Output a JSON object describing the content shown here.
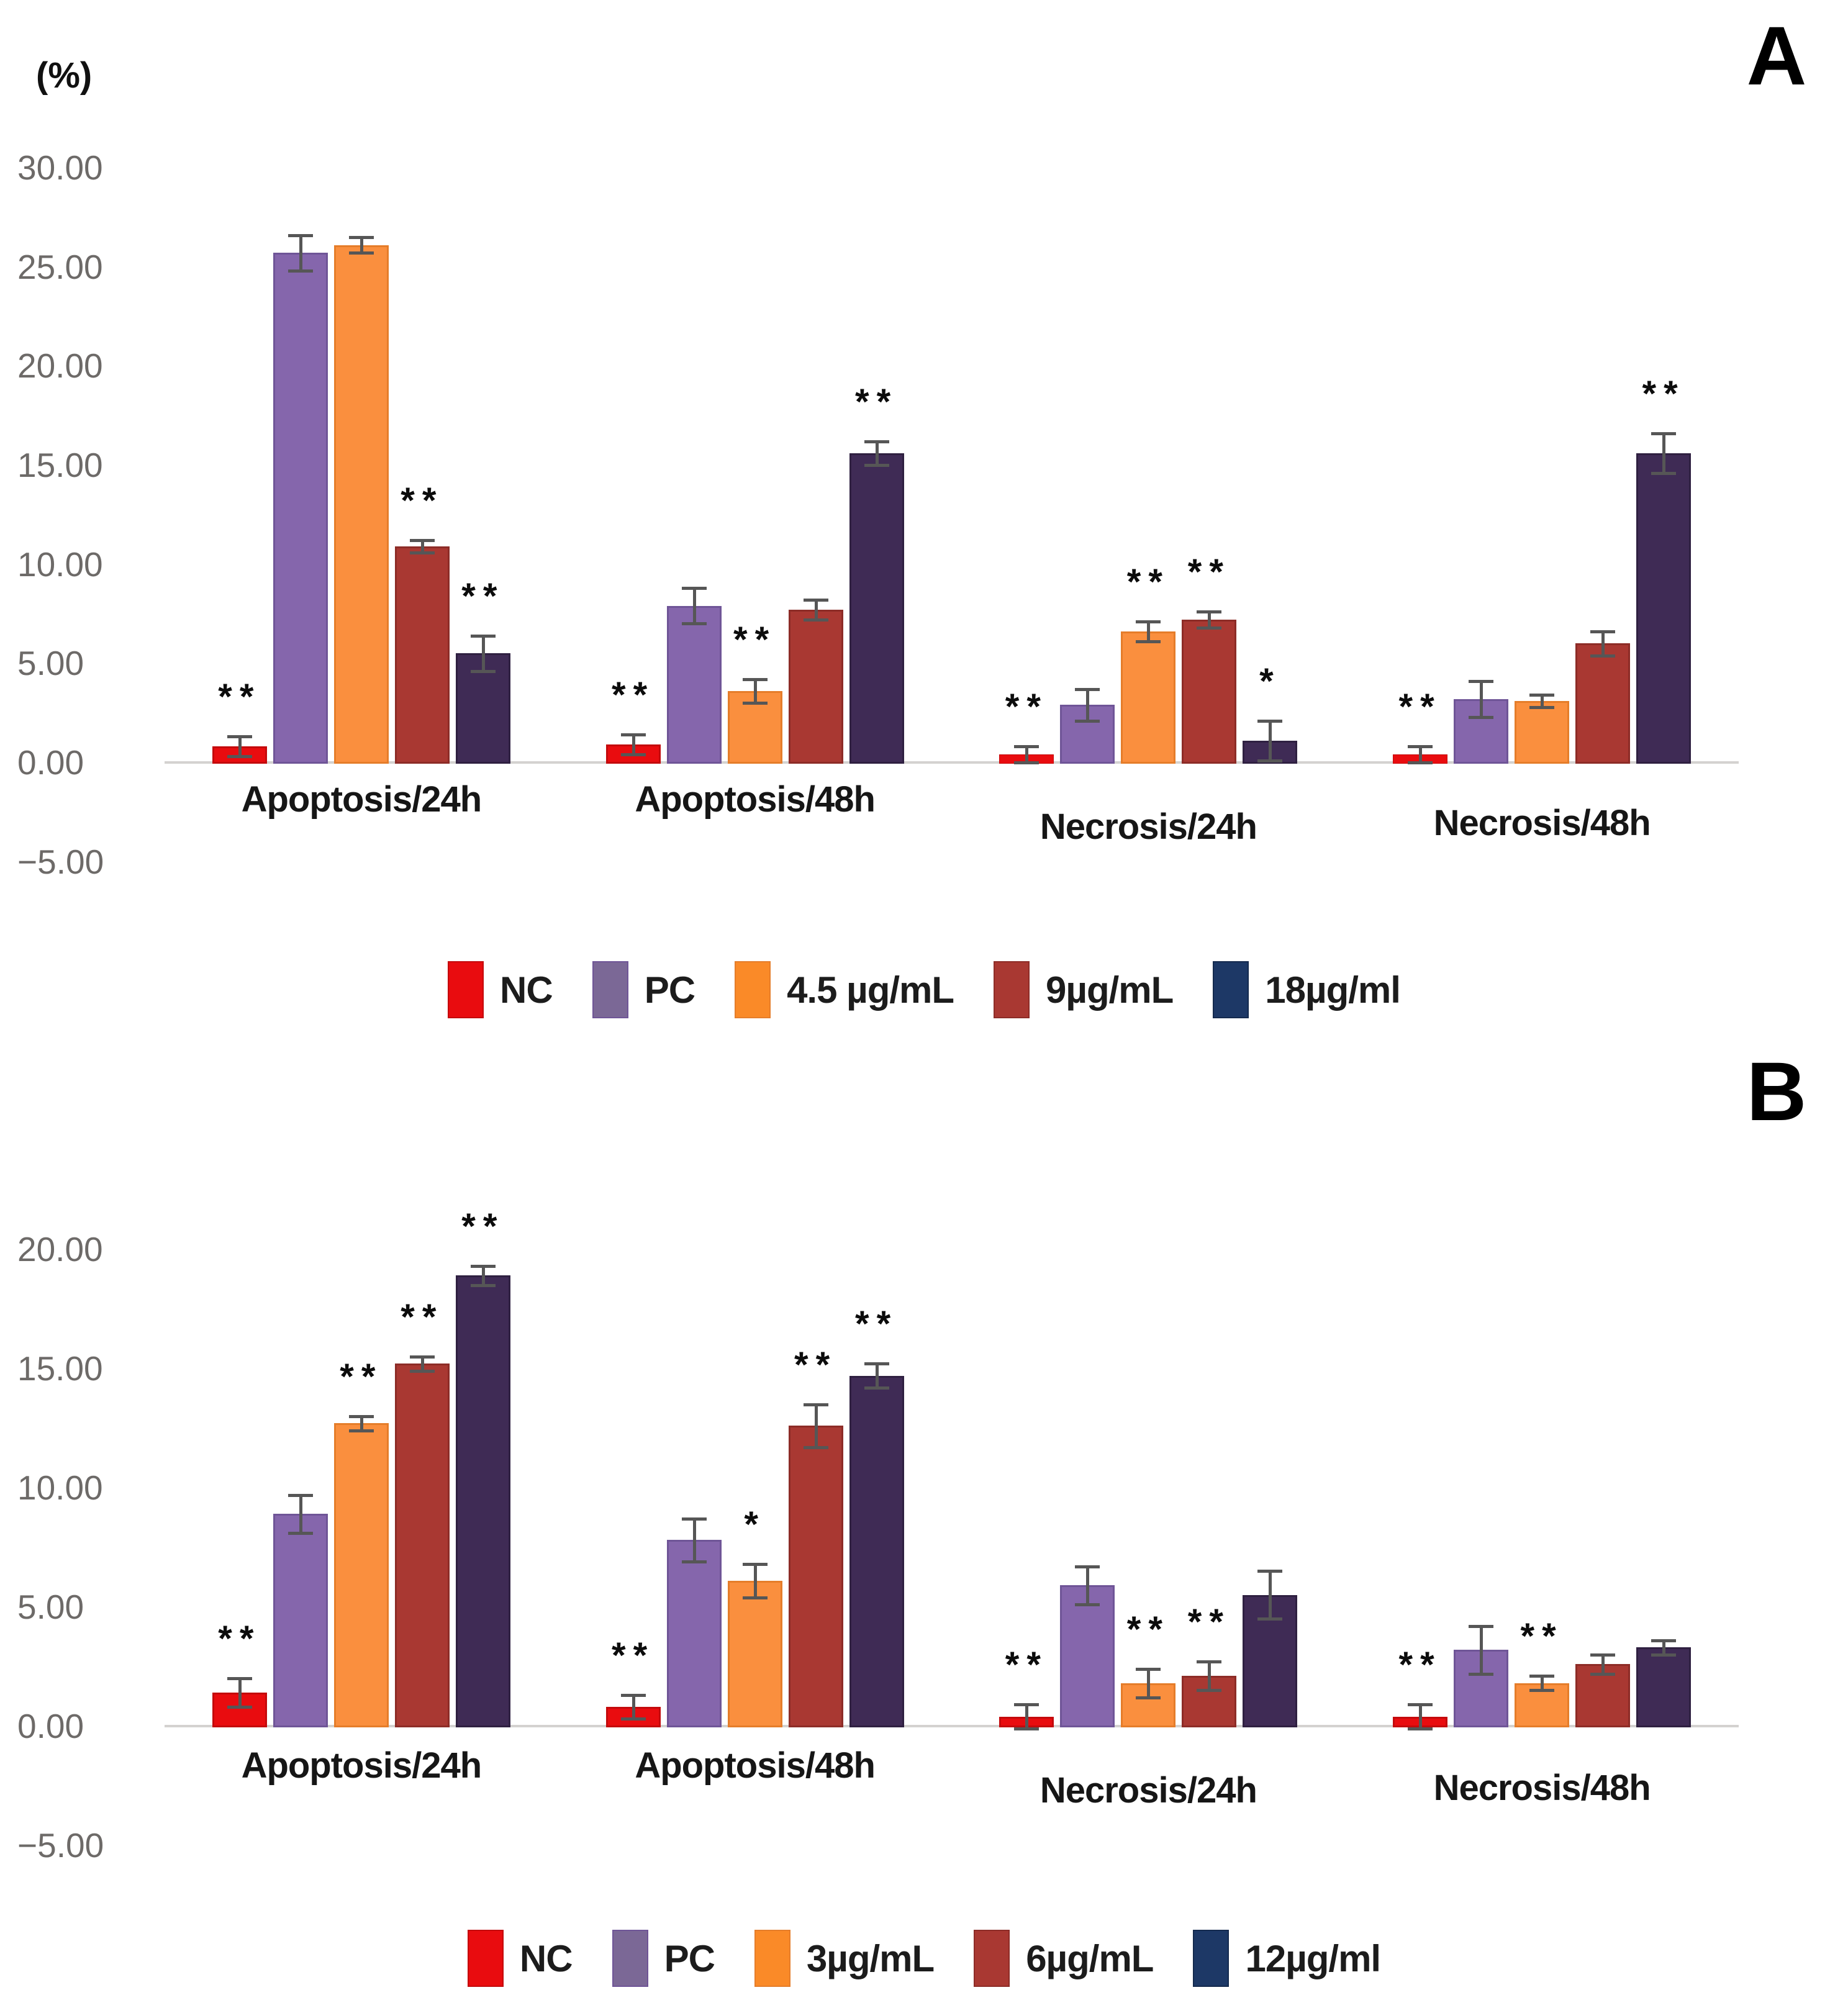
{
  "y_axis_unit_label": "(%)",
  "chart_data": [
    {
      "type": "bar",
      "panel_label": "A",
      "y_axis_label": "(%)",
      "ylim": [
        -5,
        30
      ],
      "y_ticks": [
        30,
        25,
        20,
        15,
        10,
        5,
        0,
        -5
      ],
      "tick_labels": [
        "30.00",
        "25.00",
        "20.00",
        "15.00",
        "10.00",
        "5.00",
        "0.00",
        "−5.00"
      ],
      "grid": false,
      "legend_position": "bottom",
      "categories": [
        "Apoptosis/24h",
        "Apoptosis/48h",
        "Necrosis/24h",
        "Necrosis/48h"
      ],
      "series": [
        {
          "name": "NC",
          "color": "#e90c0f",
          "border": "#c40a0c",
          "legend_color": "#e90c0f",
          "values": [
            0.8,
            0.9,
            0.4,
            0.4
          ],
          "errors": [
            0.5,
            0.5,
            0.4,
            0.4
          ],
          "sig": [
            "**",
            "**",
            "**",
            "**"
          ]
        },
        {
          "name": "PC",
          "color": "#8566ac",
          "border": "#6f5597",
          "legend_color": "#7b6896",
          "values": [
            25.7,
            7.9,
            2.9,
            3.2
          ],
          "errors": [
            0.9,
            0.9,
            0.8,
            0.9
          ],
          "sig": [
            "",
            "",
            "",
            ""
          ]
        },
        {
          "name": "4.5 µg/mL",
          "color": "#fa8f3e",
          "border": "#e57d2a",
          "legend_color": "#fa8a28",
          "values": [
            26.1,
            3.6,
            6.6,
            3.1
          ],
          "errors": [
            0.4,
            0.6,
            0.5,
            0.3
          ],
          "sig": [
            "",
            "**",
            "**",
            ""
          ]
        },
        {
          "name": "9µg/mL",
          "color": "#a93832",
          "border": "#8d2c27",
          "legend_color": "#a93832",
          "values": [
            10.9,
            7.7,
            7.2,
            6.0
          ],
          "errors": [
            0.3,
            0.5,
            0.4,
            0.6
          ],
          "sig": [
            "**",
            "",
            "**",
            ""
          ]
        },
        {
          "name": "18µg/ml",
          "color": "#3f2b55",
          "border": "#2f2041",
          "legend_color": "#1d3866",
          "legend_border": "#142a4e",
          "values": [
            5.5,
            15.6,
            1.1,
            15.6
          ],
          "errors": [
            0.9,
            0.6,
            1.0,
            1.0
          ],
          "sig": [
            "**",
            "**",
            "*",
            "**"
          ]
        }
      ]
    },
    {
      "type": "bar",
      "panel_label": "B",
      "y_axis_label": "",
      "ylim": [
        -5,
        20
      ],
      "y_ticks": [
        20,
        15,
        10,
        5,
        0,
        -5
      ],
      "tick_labels": [
        "20.00",
        "15.00",
        "10.00",
        "5.00",
        "0.00",
        "−5.00"
      ],
      "grid": false,
      "legend_position": "bottom",
      "categories": [
        "Apoptosis/24h",
        "Apoptosis/48h",
        "Necrosis/24h",
        "Necrosis/48h"
      ],
      "series": [
        {
          "name": "NC",
          "color": "#e90c0f",
          "border": "#c40a0c",
          "legend_color": "#e90c0f",
          "values": [
            1.4,
            0.8,
            0.4,
            0.4
          ],
          "errors": [
            0.6,
            0.5,
            0.5,
            0.5
          ],
          "sig": [
            "**",
            "**",
            "**",
            "**"
          ]
        },
        {
          "name": "PC",
          "color": "#8566ac",
          "border": "#6f5597",
          "legend_color": "#7b6896",
          "values": [
            8.9,
            7.8,
            5.9,
            3.2
          ],
          "errors": [
            0.8,
            0.9,
            0.8,
            1.0
          ],
          "sig": [
            "",
            "",
            "",
            ""
          ]
        },
        {
          "name": "3µg/mL",
          "color": "#fa8f3e",
          "border": "#e57d2a",
          "legend_color": "#fa8a28",
          "values": [
            12.7,
            6.1,
            1.8,
            1.8
          ],
          "errors": [
            0.3,
            0.7,
            0.6,
            0.3
          ],
          "sig": [
            "**",
            "*",
            "**",
            "**"
          ]
        },
        {
          "name": "6µg/mL",
          "color": "#a93832",
          "border": "#8d2c27",
          "legend_color": "#a93832",
          "values": [
            15.2,
            12.6,
            2.1,
            2.6
          ],
          "errors": [
            0.3,
            0.9,
            0.6,
            0.4
          ],
          "sig": [
            "**",
            "**",
            "**",
            ""
          ]
        },
        {
          "name": "12µg/ml",
          "color": "#3f2b55",
          "border": "#2f2041",
          "legend_color": "#1d3866",
          "legend_border": "#142a4e",
          "values": [
            18.9,
            14.7,
            5.5,
            3.3
          ],
          "errors": [
            0.4,
            0.5,
            1.0,
            0.3
          ],
          "sig": [
            "**",
            "**",
            "",
            ""
          ]
        }
      ]
    }
  ]
}
